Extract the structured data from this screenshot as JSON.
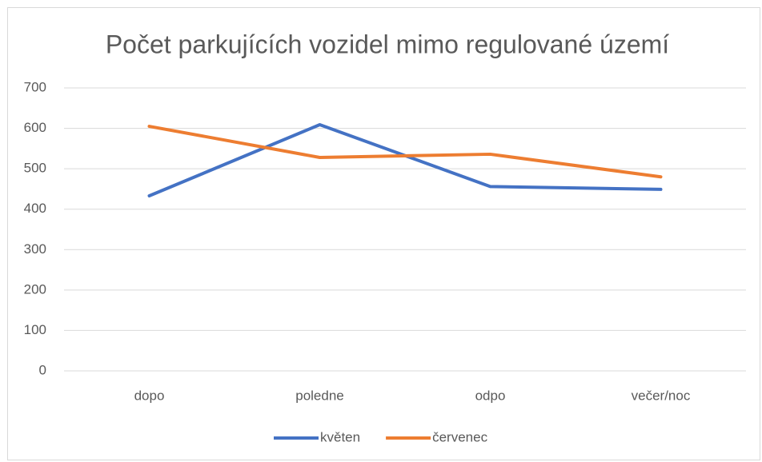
{
  "chart_data": {
    "type": "line",
    "title": "Počet parkujících vozidel mimo regulované území",
    "categories": [
      "dopo",
      "poledne",
      "odpo",
      "večer/noc"
    ],
    "series": [
      {
        "name": "květen",
        "color": "#4472c4",
        "values": [
          433,
          609,
          456,
          449
        ]
      },
      {
        "name": "červenec",
        "color": "#ed7d31",
        "values": [
          605,
          528,
          536,
          480
        ]
      }
    ],
    "ylim": [
      0,
      700
    ],
    "yticks": [
      0,
      100,
      200,
      300,
      400,
      500,
      600,
      700
    ],
    "grid": true,
    "legend": "bottom"
  }
}
